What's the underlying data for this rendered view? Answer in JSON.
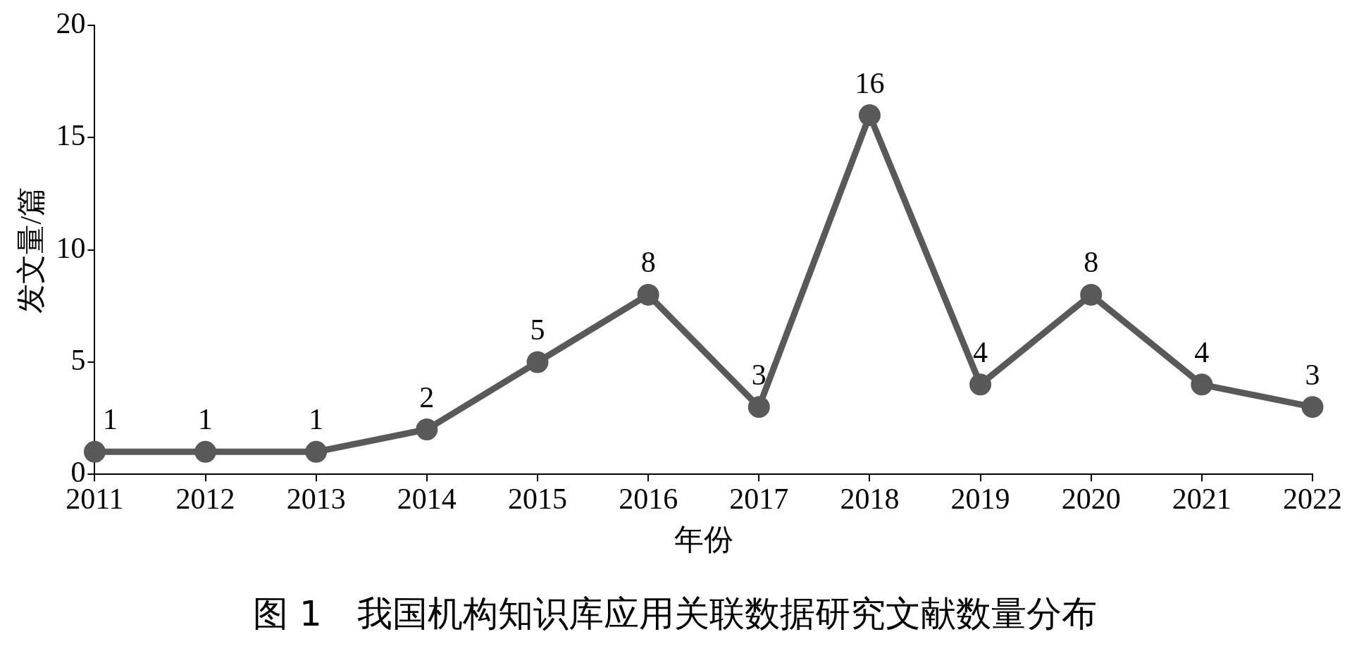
{
  "chart_data": {
    "type": "line",
    "title": "图 1　我国机构知识库应用关联数据研究文献数量分布",
    "xlabel": "年份",
    "ylabel": "发文量/篇",
    "categories": [
      "2011",
      "2012",
      "2013",
      "2014",
      "2015",
      "2016",
      "2017",
      "2018",
      "2019",
      "2020",
      "2021",
      "2022"
    ],
    "series": [
      {
        "color": "#595959",
        "values": [
          1,
          1,
          1,
          2,
          5,
          8,
          3,
          16,
          4,
          8,
          4,
          3
        ]
      }
    ],
    "ylim": [
      0,
      20
    ],
    "yticks": [
      0,
      5,
      10,
      15,
      20
    ],
    "grid": false,
    "legend": false,
    "marker": "circle",
    "line_style": "solid",
    "data_labels": true
  }
}
